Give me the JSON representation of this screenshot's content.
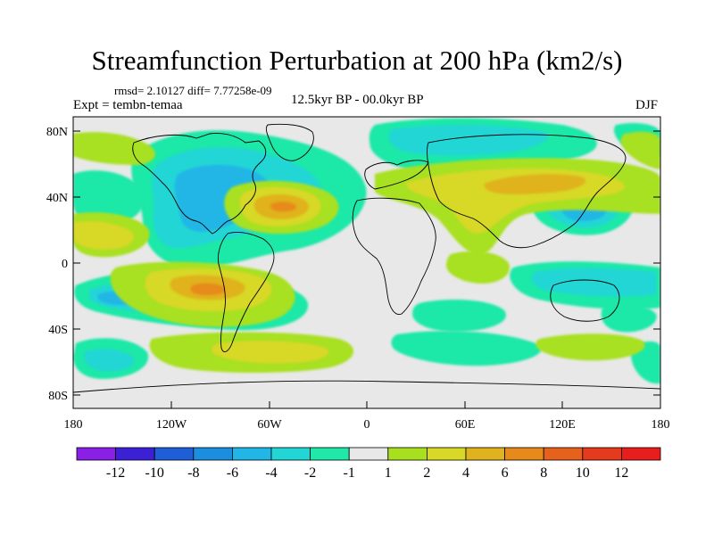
{
  "title": "Streamfunction Perturbation at 200 hPa (km2/s)",
  "stats_line": "rmsd= 2.10127 diff= 7.77258e-09",
  "experiment": "Expt = tembn-temaa",
  "period": "12.5kyr BP - 00.0kyr BP",
  "season": "DJF",
  "lat_ticks": [
    "80N",
    "40N",
    "0",
    "40S",
    "80S"
  ],
  "lon_ticks": [
    "180",
    "120W",
    "60W",
    "0",
    "60E",
    "120E",
    "180"
  ],
  "colorbar": {
    "labels": [
      "-12",
      "-10",
      "-8",
      "-6",
      "-4",
      "-2",
      "-1",
      "1",
      "2",
      "4",
      "6",
      "8",
      "10",
      "12"
    ],
    "colors": [
      "#8a1fe6",
      "#3c20d6",
      "#1e5fd8",
      "#1c8ee0",
      "#20b6e6",
      "#22d6d6",
      "#1fe8a8",
      "#e8e8e8",
      "#a8e020",
      "#d8d826",
      "#e0b21e",
      "#e68a1c",
      "#e6621c",
      "#e63a1c",
      "#e81e1e"
    ]
  },
  "palette": {
    "background": "#e8e8e8",
    "neg1": "#1fe8a8",
    "neg2": "#22d6d6",
    "neg4": "#20b6e6",
    "pos1": "#a8e020",
    "pos2": "#d8d826",
    "pos4": "#e0b21e",
    "pos6": "#e68a1c"
  }
}
